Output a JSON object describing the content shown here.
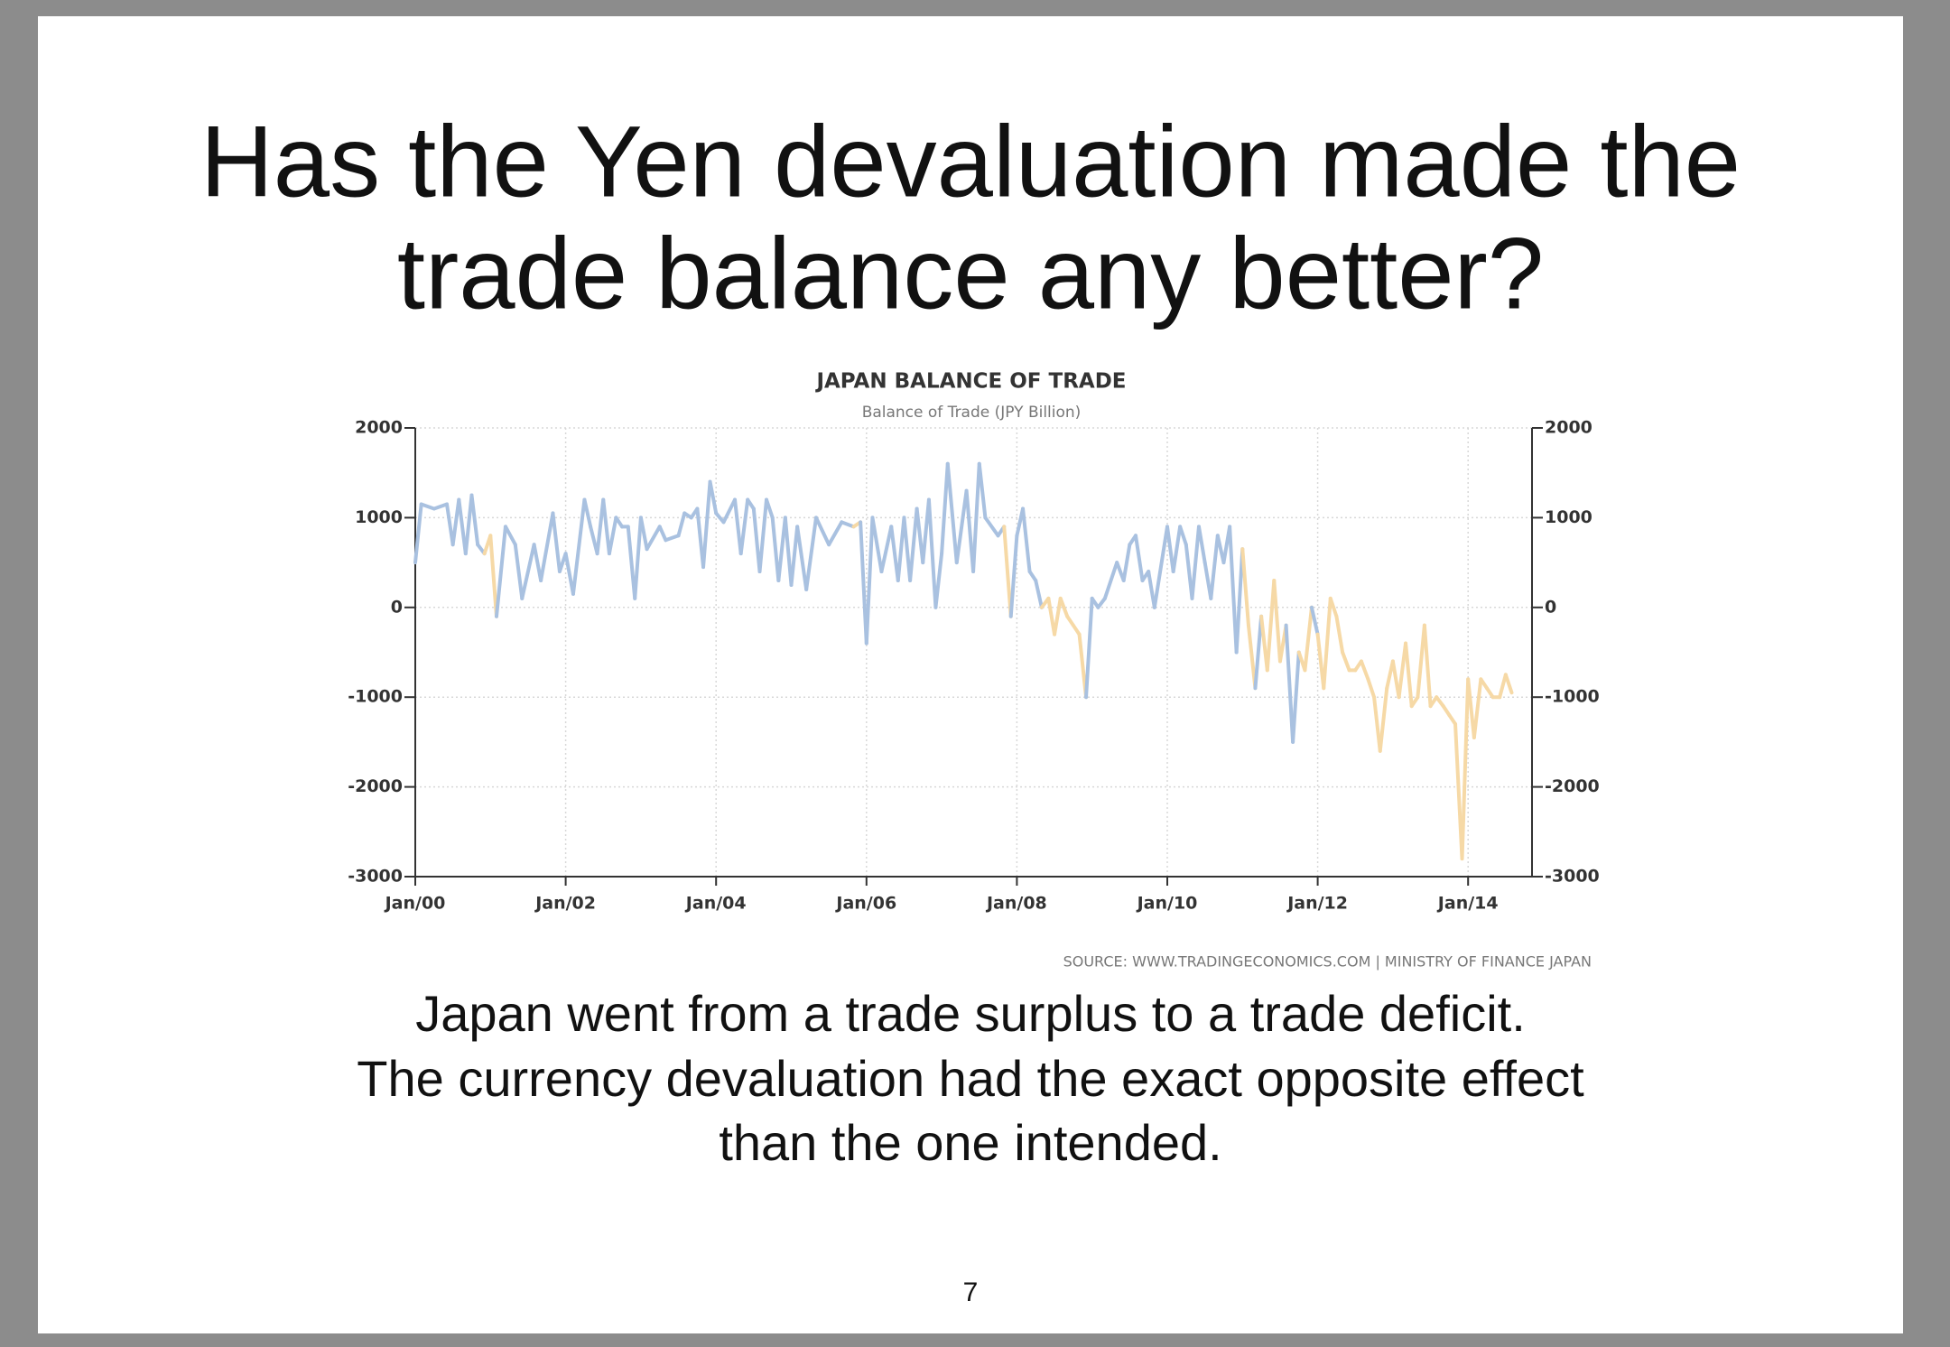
{
  "slide": {
    "title": [
      "Has the Yen devaluation made the",
      "trade balance any better?"
    ],
    "body": [
      "Japan went from a trade surplus to a trade deficit.",
      "The currency devaluation had the exact opposite effect",
      "than the one intended."
    ],
    "page_number": "7"
  },
  "chart_data": {
    "type": "line",
    "title": "JAPAN BALANCE OF TRADE",
    "subtitle": "Balance of Trade (JPY Billion)",
    "source": "SOURCE: WWW.TRADINGECONOMICS.COM | MINISTRY OF FINANCE JAPAN",
    "x": [
      2000,
      2000.08,
      2000.25,
      2000.42,
      2000.5,
      2000.58,
      2000.67,
      2000.75,
      2000.83,
      2000.92,
      2001,
      2001.08,
      2001.2,
      2001.33,
      2001.42,
      2001.58,
      2001.67,
      2001.83,
      2001.92,
      2002,
      2002.1,
      2002.25,
      2002.33,
      2002.42,
      2002.5,
      2002.58,
      2002.67,
      2002.75,
      2002.83,
      2002.92,
      2003,
      2003.08,
      2003.25,
      2003.33,
      2003.5,
      2003.58,
      2003.67,
      2003.75,
      2003.83,
      2003.92,
      2004,
      2004.1,
      2004.25,
      2004.33,
      2004.42,
      2004.5,
      2004.58,
      2004.67,
      2004.75,
      2004.83,
      2004.92,
      2005,
      2005.08,
      2005.2,
      2005.33,
      2005.5,
      2005.67,
      2005.83,
      2005.92,
      2006,
      2006.08,
      2006.2,
      2006.33,
      2006.42,
      2006.5,
      2006.58,
      2006.67,
      2006.75,
      2006.83,
      2006.92,
      2007,
      2007.08,
      2007.2,
      2007.33,
      2007.42,
      2007.5,
      2007.58,
      2007.75,
      2007.83,
      2007.92,
      2008,
      2008.08,
      2008.17,
      2008.25,
      2008.33,
      2008.42,
      2008.5,
      2008.58,
      2008.67,
      2008.75,
      2008.83,
      2008.92,
      2009,
      2009.08,
      2009.17,
      2009.33,
      2009.42,
      2009.5,
      2009.58,
      2009.67,
      2009.75,
      2009.83,
      2010,
      2010.08,
      2010.17,
      2010.25,
      2010.33,
      2010.42,
      2010.5,
      2010.58,
      2010.67,
      2010.75,
      2010.83,
      2010.92,
      2011,
      2011.08,
      2011.17,
      2011.25,
      2011.33,
      2011.42,
      2011.5,
      2011.58,
      2011.67,
      2011.75,
      2011.83,
      2011.92,
      2012,
      2012.08,
      2012.17,
      2012.25,
      2012.33,
      2012.42,
      2012.5,
      2012.58,
      2012.67,
      2012.75,
      2012.83,
      2012.92,
      2013,
      2013.08,
      2013.17,
      2013.25,
      2013.33,
      2013.42,
      2013.5,
      2013.58,
      2013.67,
      2013.75,
      2013.83,
      2013.92,
      2014,
      2014.08,
      2014.17,
      2014.25,
      2014.33,
      2014.42,
      2014.5,
      2014.58
    ],
    "values": [
      500,
      1150,
      1100,
      1150,
      700,
      1200,
      600,
      1250,
      700,
      600,
      800,
      -100,
      900,
      700,
      100,
      700,
      300,
      1050,
      400,
      600,
      150,
      1200,
      900,
      600,
      1200,
      600,
      1000,
      900,
      900,
      100,
      1000,
      650,
      900,
      750,
      800,
      1050,
      1000,
      1100,
      450,
      1400,
      1050,
      950,
      1200,
      600,
      1200,
      1100,
      400,
      1200,
      1000,
      300,
      1000,
      250,
      900,
      200,
      1000,
      700,
      950,
      900,
      950,
      -400,
      1000,
      400,
      900,
      300,
      1000,
      300,
      1100,
      500,
      1200,
      0,
      600,
      1600,
      500,
      1300,
      400,
      1600,
      1000,
      800,
      900,
      -100,
      800,
      1100,
      400,
      300,
      0,
      100,
      -300,
      100,
      -100,
      -200,
      -300,
      -1000,
      100,
      0,
      100,
      500,
      300,
      700,
      800,
      300,
      400,
      0,
      900,
      400,
      900,
      700,
      100,
      900,
      500,
      100,
      800,
      500,
      900,
      -500,
      650,
      -200,
      -900,
      -100,
      -700,
      300,
      -600,
      -200,
      -1500,
      -500,
      -700,
      0,
      -300,
      -900,
      100,
      -100,
      -500,
      -700,
      -700,
      -600,
      -800,
      -1000,
      -1600,
      -900,
      -600,
      -1000,
      -400,
      -1100,
      -1000,
      -200,
      -1100,
      -1000,
      -1100,
      -1200,
      -1300,
      -2800,
      -800,
      -1450,
      -800,
      -900,
      -1000,
      -1000,
      -750,
      -950
    ],
    "segment_colors": [
      "#a9c1e0",
      "#a9c1e0",
      "#a9c1e0",
      "#a9c1e0",
      "#a9c1e0",
      "#a9c1e0",
      "#a9c1e0",
      "#a9c1e0",
      "#a9c1e0",
      "#f6d9a6",
      "#f6d9a6",
      "#a9c1e0",
      "#a9c1e0",
      "#a9c1e0",
      "#a9c1e0",
      "#a9c1e0",
      "#a9c1e0",
      "#a9c1e0",
      "#a9c1e0",
      "#a9c1e0",
      "#a9c1e0",
      "#a9c1e0",
      "#a9c1e0",
      "#a9c1e0",
      "#a9c1e0",
      "#a9c1e0",
      "#a9c1e0",
      "#a9c1e0",
      "#a9c1e0",
      "#a9c1e0",
      "#a9c1e0",
      "#a9c1e0",
      "#a9c1e0",
      "#a9c1e0",
      "#a9c1e0",
      "#a9c1e0",
      "#a9c1e0",
      "#a9c1e0",
      "#a9c1e0",
      "#a9c1e0",
      "#a9c1e0",
      "#a9c1e0",
      "#a9c1e0",
      "#a9c1e0",
      "#a9c1e0",
      "#a9c1e0",
      "#a9c1e0",
      "#a9c1e0",
      "#a9c1e0",
      "#a9c1e0",
      "#a9c1e0",
      "#a9c1e0",
      "#a9c1e0",
      "#a9c1e0",
      "#a9c1e0",
      "#a9c1e0",
      "#a9c1e0",
      "#f6d9a6",
      "#a9c1e0",
      "#a9c1e0",
      "#a9c1e0",
      "#a9c1e0",
      "#a9c1e0",
      "#a9c1e0",
      "#a9c1e0",
      "#a9c1e0",
      "#a9c1e0",
      "#a9c1e0",
      "#a9c1e0",
      "#a9c1e0",
      "#a9c1e0",
      "#a9c1e0",
      "#a9c1e0",
      "#a9c1e0",
      "#a9c1e0",
      "#a9c1e0",
      "#a9c1e0",
      "#a9c1e0",
      "#f6d9a6",
      "#a9c1e0",
      "#a9c1e0",
      "#a9c1e0",
      "#a9c1e0",
      "#a9c1e0",
      "#f6d9a6",
      "#f6d9a6",
      "#f6d9a6",
      "#f6d9a6",
      "#f6d9a6",
      "#f6d9a6",
      "#f6d9a6",
      "#a9c1e0",
      "#a9c1e0",
      "#a9c1e0",
      "#a9c1e0",
      "#a9c1e0",
      "#a9c1e0",
      "#a9c1e0",
      "#a9c1e0",
      "#a9c1e0",
      "#a9c1e0",
      "#a9c1e0",
      "#a9c1e0",
      "#a9c1e0",
      "#a9c1e0",
      "#a9c1e0",
      "#a9c1e0",
      "#a9c1e0",
      "#a9c1e0",
      "#a9c1e0",
      "#a9c1e0",
      "#a9c1e0",
      "#a9c1e0",
      "#a9c1e0",
      "#f6d9a6",
      "#f6d9a6",
      "#a9c1e0",
      "#f6d9a6",
      "#f6d9a6",
      "#f6d9a6",
      "#f6d9a6",
      "#a9c1e0",
      "#a9c1e0",
      "#f6d9a6",
      "#f6d9a6",
      "#a9c1e0",
      "#f6d9a6",
      "#f6d9a6",
      "#f6d9a6",
      "#f6d9a6",
      "#f6d9a6",
      "#f6d9a6",
      "#f6d9a6",
      "#f6d9a6",
      "#f6d9a6",
      "#f6d9a6",
      "#f6d9a6",
      "#f6d9a6",
      "#f6d9a6",
      "#f6d9a6",
      "#f6d9a6",
      "#f6d9a6",
      "#f6d9a6",
      "#f6d9a6",
      "#f6d9a6",
      "#f6d9a6",
      "#f6d9a6",
      "#f6d9a6",
      "#f6d9a6",
      "#f6d9a6",
      "#f6d9a6",
      "#f6d9a6",
      "#f6d9a6",
      "#f6d9a6",
      "#f6d9a6",
      "#f6d9a6",
      "#f6d9a6",
      "#f6d9a6"
    ],
    "xlim": [
      2000,
      2014.85
    ],
    "xticks": [
      {
        "value": 2000,
        "label": "Jan/00"
      },
      {
        "value": 2002,
        "label": "Jan/02"
      },
      {
        "value": 2004,
        "label": "Jan/04"
      },
      {
        "value": 2006,
        "label": "Jan/06"
      },
      {
        "value": 2008,
        "label": "Jan/08"
      },
      {
        "value": 2010,
        "label": "Jan/10"
      },
      {
        "value": 2012,
        "label": "Jan/12"
      },
      {
        "value": 2014,
        "label": "Jan/14"
      }
    ],
    "ylim": [
      -3000,
      2000
    ],
    "yticks": [
      -3000,
      -2000,
      -1000,
      0,
      1000,
      2000
    ],
    "y2lim": [
      -3000,
      2000
    ],
    "y2ticks": [
      -3000,
      -2000,
      -1000,
      0,
      1000,
      2000
    ],
    "grid": true
  }
}
